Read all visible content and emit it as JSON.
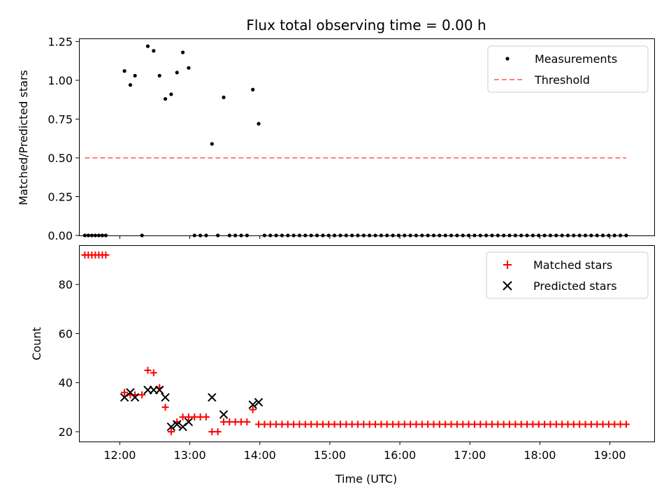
{
  "chart_data": [
    {
      "type": "scatter",
      "title": "Flux total observing time = 0.00 h",
      "xlabel": "",
      "ylabel": "Matched/Predicted stars",
      "x_unit": "time (UTC)",
      "xlim": [
        "11:25",
        "19:38"
      ],
      "ylim": [
        0,
        1.27
      ],
      "xticks": [
        "12:00",
        "13:00",
        "14:00",
        "15:00",
        "16:00",
        "17:00",
        "18:00",
        "19:00"
      ],
      "yticks": [
        "0.00",
        "0.25",
        "0.50",
        "0.75",
        "1.00",
        "1.25"
      ],
      "x_tick_labels_visible": false,
      "legend": {
        "position": "top-right",
        "entries": [
          "Measurements",
          "Threshold"
        ]
      },
      "series": [
        {
          "name": "Measurements",
          "marker": "dot",
          "color": "#000000",
          "points": [
            [
              "11:30",
              0
            ],
            [
              "11:33",
              0
            ],
            [
              "11:36",
              0
            ],
            [
              "11:39",
              0
            ],
            [
              "11:42",
              0
            ],
            [
              "11:45",
              0
            ],
            [
              "11:48",
              0
            ],
            [
              "12:04",
              1.06
            ],
            [
              "12:09",
              0.97
            ],
            [
              "12:13",
              1.03
            ],
            [
              "12:19",
              0
            ],
            [
              "12:24",
              1.22
            ],
            [
              "12:29",
              1.19
            ],
            [
              "12:34",
              1.03
            ],
            [
              "12:39",
              0.88
            ],
            [
              "12:44",
              0.91
            ],
            [
              "12:49",
              1.05
            ],
            [
              "12:54",
              1.18
            ],
            [
              "12:59",
              1.08
            ],
            [
              "13:04",
              0
            ],
            [
              "13:09",
              0
            ],
            [
              "13:14",
              0
            ],
            [
              "13:19",
              0.59
            ],
            [
              "13:24",
              0
            ],
            [
              "13:29",
              0.89
            ],
            [
              "13:34",
              0
            ],
            [
              "13:39",
              0
            ],
            [
              "13:44",
              0
            ],
            [
              "13:49",
              0
            ],
            [
              "13:54",
              0.94
            ],
            [
              "13:59",
              0.72
            ],
            [
              "14:04",
              0
            ],
            [
              "14:09",
              0
            ],
            [
              "14:14",
              0
            ],
            [
              "14:19",
              0
            ],
            [
              "14:24",
              0
            ],
            [
              "14:29",
              0
            ],
            [
              "14:34",
              0
            ],
            [
              "14:39",
              0
            ],
            [
              "14:44",
              0
            ],
            [
              "14:49",
              0
            ],
            [
              "14:54",
              0
            ],
            [
              "14:59",
              0
            ],
            [
              "15:04",
              0
            ],
            [
              "15:09",
              0
            ],
            [
              "15:14",
              0
            ],
            [
              "15:19",
              0
            ],
            [
              "15:24",
              0
            ],
            [
              "15:29",
              0
            ],
            [
              "15:34",
              0
            ],
            [
              "15:39",
              0
            ],
            [
              "15:44",
              0
            ],
            [
              "15:49",
              0
            ],
            [
              "15:54",
              0
            ],
            [
              "15:59",
              0
            ],
            [
              "16:04",
              0
            ],
            [
              "16:09",
              0
            ],
            [
              "16:14",
              0
            ],
            [
              "16:19",
              0
            ],
            [
              "16:24",
              0
            ],
            [
              "16:29",
              0
            ],
            [
              "16:34",
              0
            ],
            [
              "16:39",
              0
            ],
            [
              "16:44",
              0
            ],
            [
              "16:49",
              0
            ],
            [
              "16:54",
              0
            ],
            [
              "16:59",
              0
            ],
            [
              "17:04",
              0
            ],
            [
              "17:09",
              0
            ],
            [
              "17:14",
              0
            ],
            [
              "17:19",
              0
            ],
            [
              "17:24",
              0
            ],
            [
              "17:29",
              0
            ],
            [
              "17:34",
              0
            ],
            [
              "17:39",
              0
            ],
            [
              "17:44",
              0
            ],
            [
              "17:49",
              0
            ],
            [
              "17:54",
              0
            ],
            [
              "17:59",
              0
            ],
            [
              "18:04",
              0
            ],
            [
              "18:09",
              0
            ],
            [
              "18:14",
              0
            ],
            [
              "18:19",
              0
            ],
            [
              "18:24",
              0
            ],
            [
              "18:29",
              0
            ],
            [
              "18:34",
              0
            ],
            [
              "18:39",
              0
            ],
            [
              "18:44",
              0
            ],
            [
              "18:49",
              0
            ],
            [
              "18:54",
              0
            ],
            [
              "18:59",
              0
            ],
            [
              "19:04",
              0
            ],
            [
              "19:09",
              0
            ],
            [
              "19:14",
              0
            ]
          ]
        },
        {
          "name": "Threshold",
          "marker": "dashed-line",
          "color": "#ff7f7f",
          "points": [
            [
              "11:30",
              0.5
            ],
            [
              "19:14",
              0.5
            ]
          ]
        }
      ]
    },
    {
      "type": "scatter",
      "title": "",
      "xlabel": "Time (UTC)",
      "ylabel": "Count",
      "x_unit": "time (UTC)",
      "xlim": [
        "11:25",
        "19:38"
      ],
      "ylim": [
        16,
        96
      ],
      "xticks": [
        "12:00",
        "13:00",
        "14:00",
        "15:00",
        "16:00",
        "17:00",
        "18:00",
        "19:00"
      ],
      "yticks": [
        "20",
        "40",
        "60",
        "80"
      ],
      "legend": {
        "position": "top-right",
        "entries": [
          "Matched stars",
          "Predicted stars"
        ]
      },
      "series": [
        {
          "name": "Matched stars",
          "marker": "plus",
          "color": "#ff0000",
          "points": [
            [
              "11:30",
              92
            ],
            [
              "11:33",
              92
            ],
            [
              "11:36",
              92
            ],
            [
              "11:39",
              92
            ],
            [
              "11:42",
              92
            ],
            [
              "11:45",
              92
            ],
            [
              "11:48",
              92
            ],
            [
              "12:04",
              36
            ],
            [
              "12:09",
              35
            ],
            [
              "12:13",
              35
            ],
            [
              "12:19",
              35
            ],
            [
              "12:24",
              45
            ],
            [
              "12:29",
              44
            ],
            [
              "12:34",
              38
            ],
            [
              "12:39",
              30
            ],
            [
              "12:44",
              20
            ],
            [
              "12:49",
              24
            ],
            [
              "12:54",
              26
            ],
            [
              "12:59",
              26
            ],
            [
              "13:04",
              26
            ],
            [
              "13:09",
              26
            ],
            [
              "13:14",
              26
            ],
            [
              "13:19",
              20
            ],
            [
              "13:24",
              20
            ],
            [
              "13:29",
              24
            ],
            [
              "13:34",
              24
            ],
            [
              "13:39",
              24
            ],
            [
              "13:44",
              24
            ],
            [
              "13:49",
              24
            ],
            [
              "13:54",
              29
            ],
            [
              "13:59",
              23
            ],
            [
              "14:04",
              23
            ],
            [
              "14:09",
              23
            ],
            [
              "14:14",
              23
            ],
            [
              "14:19",
              23
            ],
            [
              "14:24",
              23
            ],
            [
              "14:29",
              23
            ],
            [
              "14:34",
              23
            ],
            [
              "14:39",
              23
            ],
            [
              "14:44",
              23
            ],
            [
              "14:49",
              23
            ],
            [
              "14:54",
              23
            ],
            [
              "14:59",
              23
            ],
            [
              "15:04",
              23
            ],
            [
              "15:09",
              23
            ],
            [
              "15:14",
              23
            ],
            [
              "15:19",
              23
            ],
            [
              "15:24",
              23
            ],
            [
              "15:29",
              23
            ],
            [
              "15:34",
              23
            ],
            [
              "15:39",
              23
            ],
            [
              "15:44",
              23
            ],
            [
              "15:49",
              23
            ],
            [
              "15:54",
              23
            ],
            [
              "15:59",
              23
            ],
            [
              "16:04",
              23
            ],
            [
              "16:09",
              23
            ],
            [
              "16:14",
              23
            ],
            [
              "16:19",
              23
            ],
            [
              "16:24",
              23
            ],
            [
              "16:29",
              23
            ],
            [
              "16:34",
              23
            ],
            [
              "16:39",
              23
            ],
            [
              "16:44",
              23
            ],
            [
              "16:49",
              23
            ],
            [
              "16:54",
              23
            ],
            [
              "16:59",
              23
            ],
            [
              "17:04",
              23
            ],
            [
              "17:09",
              23
            ],
            [
              "17:14",
              23
            ],
            [
              "17:19",
              23
            ],
            [
              "17:24",
              23
            ],
            [
              "17:29",
              23
            ],
            [
              "17:34",
              23
            ],
            [
              "17:39",
              23
            ],
            [
              "17:44",
              23
            ],
            [
              "17:49",
              23
            ],
            [
              "17:54",
              23
            ],
            [
              "17:59",
              23
            ],
            [
              "18:04",
              23
            ],
            [
              "18:09",
              23
            ],
            [
              "18:14",
              23
            ],
            [
              "18:19",
              23
            ],
            [
              "18:24",
              23
            ],
            [
              "18:29",
              23
            ],
            [
              "18:34",
              23
            ],
            [
              "18:39",
              23
            ],
            [
              "18:44",
              23
            ],
            [
              "18:49",
              23
            ],
            [
              "18:54",
              23
            ],
            [
              "18:59",
              23
            ],
            [
              "19:04",
              23
            ],
            [
              "19:09",
              23
            ],
            [
              "19:14",
              23
            ]
          ]
        },
        {
          "name": "Predicted stars",
          "marker": "x",
          "color": "#000000",
          "points": [
            [
              "12:04",
              34
            ],
            [
              "12:09",
              36
            ],
            [
              "12:13",
              34
            ],
            [
              "12:24",
              37
            ],
            [
              "12:29",
              37
            ],
            [
              "12:34",
              37
            ],
            [
              "12:39",
              34
            ],
            [
              "12:44",
              22
            ],
            [
              "12:49",
              23
            ],
            [
              "12:54",
              22
            ],
            [
              "12:59",
              24
            ],
            [
              "13:19",
              34
            ],
            [
              "13:29",
              27
            ],
            [
              "13:54",
              31
            ],
            [
              "13:59",
              32
            ]
          ]
        }
      ]
    }
  ]
}
